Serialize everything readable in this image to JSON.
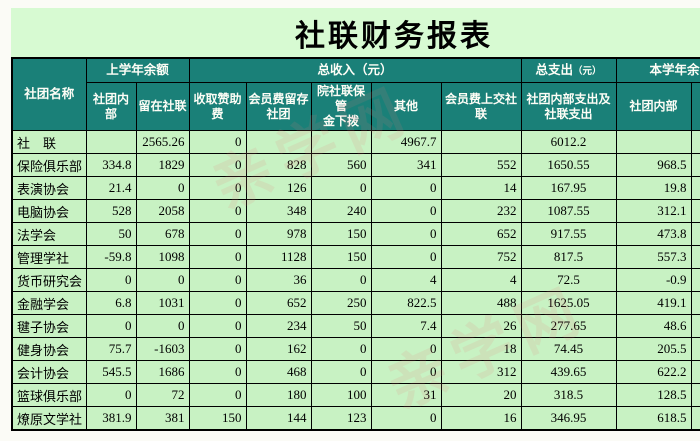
{
  "title": "社联财务报表",
  "watermark": "亲学网",
  "colors": {
    "header_teal": "#1a8078",
    "cell_green": "#c8f2c3",
    "title_band_green": "#d7fad2",
    "border": "#000000",
    "header_text": "#fdfdf6",
    "watermark_pink": "#e97d7d"
  },
  "table": {
    "header": {
      "club_name": "社团名称",
      "prev_balance": "上学年余额",
      "total_income": "总收入（元）",
      "total_expense": "总支出",
      "total_expense_unit": "（元）",
      "current_balance": "本学年余",
      "sub": {
        "prev_internal": "社团内\n部",
        "left_in_union": "留在社联",
        "sponsor_fee": "收取赞助\n费",
        "member_fee_retained": "会员费留存\n社团",
        "fund_allocated": "院社联保管\n金下拨",
        "other": "其他",
        "member_fee_paid": "会员费上交社\n联",
        "internal_union_expense": "社团内部支出及\n社联支出",
        "current_internal": "社团内部"
      }
    },
    "rows": [
      {
        "name": "社　联",
        "values": [
          "",
          "2565.26",
          "0",
          "",
          "",
          "4967.7",
          "",
          "6012.2",
          ""
        ]
      },
      {
        "name": "保险俱乐部",
        "values": [
          "334.8",
          "1829",
          "0",
          "828",
          "560",
          "341",
          "552",
          "1650.55",
          "968.5"
        ]
      },
      {
        "name": "表演协会",
        "values": [
          "21.4",
          "0",
          "0",
          "126",
          "0",
          "0",
          "14",
          "167.95",
          "19.8"
        ]
      },
      {
        "name": "电脑协会",
        "values": [
          "528",
          "2058",
          "0",
          "348",
          "240",
          "0",
          "232",
          "1087.55",
          "312.1"
        ]
      },
      {
        "name": "法学会",
        "values": [
          "50",
          "678",
          "0",
          "978",
          "150",
          "0",
          "652",
          "917.55",
          "473.8"
        ]
      },
      {
        "name": "管理学社",
        "values": [
          "-59.8",
          "1098",
          "0",
          "1128",
          "150",
          "0",
          "752",
          "817.5",
          "557.3"
        ]
      },
      {
        "name": "货币研究会",
        "values": [
          "0",
          "0",
          "0",
          "36",
          "0",
          "4",
          "4",
          "72.5",
          "-0.9"
        ]
      },
      {
        "name": "金融学会",
        "values": [
          "6.8",
          "1031",
          "0",
          "652",
          "250",
          "822.5",
          "488",
          "1625.05",
          "419.1"
        ]
      },
      {
        "name": "毽子协会",
        "values": [
          "0",
          "0",
          "0",
          "234",
          "50",
          "7.4",
          "26",
          "277.65",
          "48.6"
        ]
      },
      {
        "name": "健身协会",
        "values": [
          "75.7",
          "-1603",
          "0",
          "162",
          "0",
          "0",
          "18",
          "74.45",
          "205.5"
        ]
      },
      {
        "name": "会计协会",
        "values": [
          "545.5",
          "1686",
          "0",
          "468",
          "0",
          "0",
          "312",
          "439.65",
          "622.2"
        ]
      },
      {
        "name": "篮球俱乐部",
        "values": [
          "0",
          "72",
          "0",
          "180",
          "100",
          "31",
          "20",
          "318.5",
          "128.5"
        ]
      },
      {
        "name": "燎原文学社",
        "values": [
          "381.9",
          "381",
          "150",
          "144",
          "123",
          "0",
          "16",
          "346.95",
          "618.5"
        ]
      }
    ]
  }
}
